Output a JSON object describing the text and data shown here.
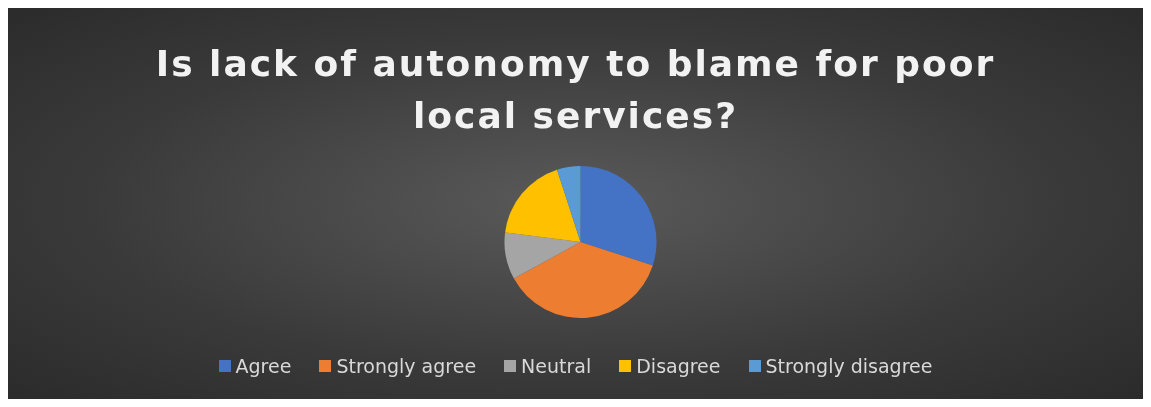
{
  "chart_data": {
    "type": "pie",
    "title": "Is lack of autonomy to blame for poor local services?",
    "categories": [
      "Agree",
      "Strongly agree",
      "Neutral",
      "Disagree",
      "Strongly disagree"
    ],
    "values": [
      30,
      37,
      10,
      18,
      5
    ],
    "colors": [
      "#4472c4",
      "#ed7d31",
      "#a5a5a5",
      "#ffc000",
      "#5b9bd5"
    ],
    "legend": "bottom"
  }
}
